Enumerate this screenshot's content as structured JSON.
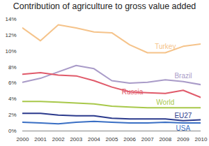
{
  "chart_data": {
    "type": "line",
    "title": "Contribution of agriculture to gross value added",
    "x": [
      2000,
      2001,
      2002,
      2003,
      2004,
      2005,
      2006,
      2007,
      2008,
      2009,
      2010
    ],
    "xlim": [
      2000,
      2010
    ],
    "xticks": [
      2000,
      2001,
      2002,
      2003,
      2004,
      2005,
      2006,
      2007,
      2008,
      2009,
      2010
    ],
    "ylim": [
      0,
      14
    ],
    "yticks": [
      {
        "value": 0,
        "label": "0%"
      },
      {
        "value": 2,
        "label": "2%"
      },
      {
        "value": 4,
        "label": "4%"
      },
      {
        "value": 6,
        "label": "6%"
      },
      {
        "value": 8,
        "label": "8%"
      },
      {
        "value": 10,
        "label": "10%"
      },
      {
        "value": 12,
        "label": "12%"
      },
      {
        "value": 14,
        "label": "14%"
      }
    ],
    "grid": false,
    "series": [
      {
        "name": "Turkey",
        "color": "#f5c38a",
        "values": [
          12.9,
          11.3,
          13.3,
          12.9,
          12.4,
          12.3,
          10.8,
          9.8,
          9.8,
          10.6,
          10.9
        ]
      },
      {
        "name": "Brazil",
        "color": "#a99bc8",
        "values": [
          6.1,
          6.6,
          7.4,
          8.2,
          7.8,
          6.3,
          6.0,
          6.1,
          6.4,
          6.2,
          5.8
        ]
      },
      {
        "name": "Russia",
        "color": "#e05a6a",
        "values": [
          7.1,
          7.3,
          7.0,
          6.9,
          6.3,
          5.5,
          4.9,
          4.8,
          4.7,
          5.1,
          4.2
        ]
      },
      {
        "name": "World",
        "color": "#a8c84a",
        "values": [
          3.7,
          3.7,
          3.6,
          3.5,
          3.4,
          3.1,
          3.0,
          2.9,
          2.9,
          2.9,
          2.9
        ]
      },
      {
        "name": "EU27",
        "color": "#2b3a8c",
        "values": [
          2.2,
          2.2,
          2.0,
          1.9,
          1.9,
          1.6,
          1.5,
          1.5,
          1.5,
          1.3,
          1.4
        ]
      },
      {
        "name": "USA",
        "color": "#3a6fc4",
        "values": [
          1.1,
          1.0,
          0.9,
          1.1,
          1.2,
          1.1,
          1.0,
          1.0,
          1.1,
          1.0,
          1.0
        ]
      }
    ]
  }
}
